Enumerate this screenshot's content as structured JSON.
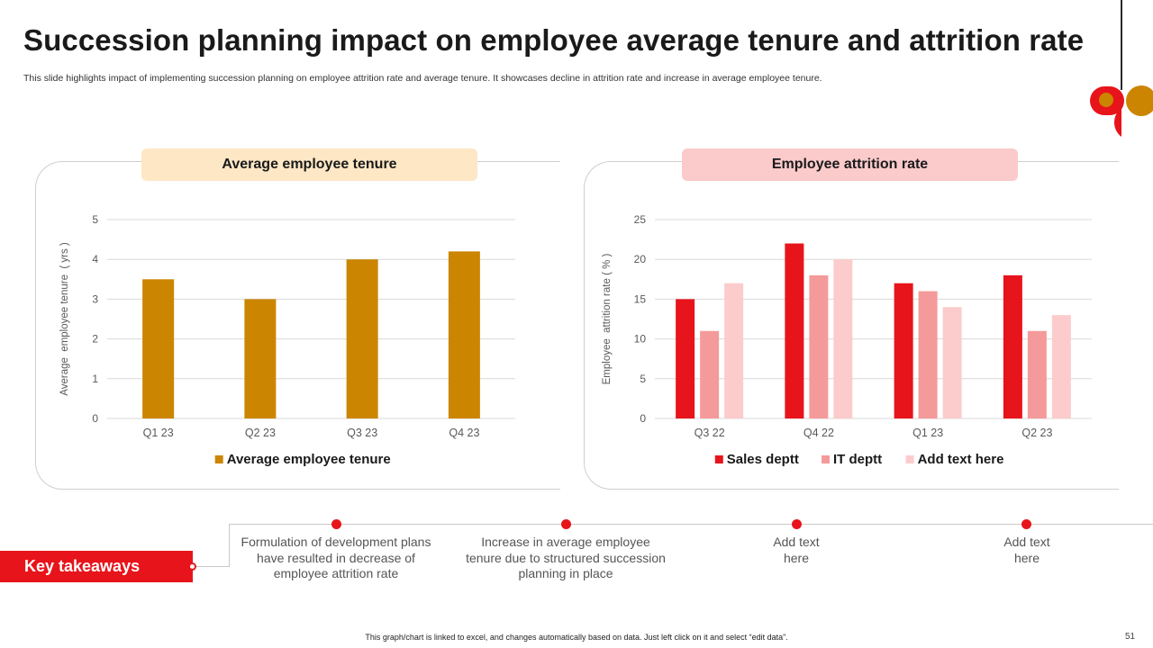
{
  "header": {
    "title": "Succession planning impact on employee average tenure and attrition rate",
    "subtitle": "This slide highlights impact of implementing succession planning on employee attrition rate and average tenure. It showcases decline in attrition rate and increase in average employee tenure."
  },
  "colors": {
    "accent_red": "#e8141b",
    "gold": "#cc8500",
    "mid_red": "#f59a9a",
    "light_red": "#fccccc",
    "pill_gold": "#fde7c5",
    "pill_red": "#fbcaca"
  },
  "chart_data": [
    {
      "type": "bar",
      "title": "Average employee tenure",
      "categories": [
        "Q1 23",
        "Q2 23",
        "Q3 23",
        "Q4 23"
      ],
      "series": [
        {
          "name": "Average employee tenure",
          "values": [
            3.5,
            3.0,
            4.0,
            4.2
          ],
          "color": "#cc8500"
        }
      ],
      "ylabel": "Average  employee tenure  ( yrs )",
      "ylim": [
        0,
        5
      ],
      "yticks": [
        "0",
        "1",
        "2",
        "3",
        "4",
        "5"
      ],
      "grid": true,
      "legend": "bottom"
    },
    {
      "type": "bar",
      "title": "Employee attrition rate",
      "categories": [
        "Q3 22",
        "Q4 22",
        "Q1 23",
        "Q2 23"
      ],
      "series": [
        {
          "name": "Sales deptt",
          "values": [
            15,
            22,
            17,
            18
          ],
          "color": "#e8141b"
        },
        {
          "name": "IT deptt",
          "values": [
            11,
            18,
            16,
            11
          ],
          "color": "#f59a9a"
        },
        {
          "name": "Add text here",
          "values": [
            17,
            20,
            14,
            13
          ],
          "color": "#fccccc"
        }
      ],
      "ylabel": "Employee  attrition rate ( % )",
      "ylim": [
        0,
        25
      ],
      "yticks": [
        "0",
        "5",
        "10",
        "15",
        "20",
        "25"
      ],
      "grid": true,
      "legend": "bottom"
    }
  ],
  "takeaways": {
    "label": "Key takeaways",
    "items": [
      "Formulation of development plans have resulted in decrease of employee attrition rate",
      "Increase in average employee tenure due to structured succession planning in place",
      "Add text here",
      "Add text here"
    ]
  },
  "footer": {
    "note": "This graph/chart is linked to excel, and changes automatically based on data. Just left click on it and select “edit data”.",
    "page_number": "51"
  }
}
